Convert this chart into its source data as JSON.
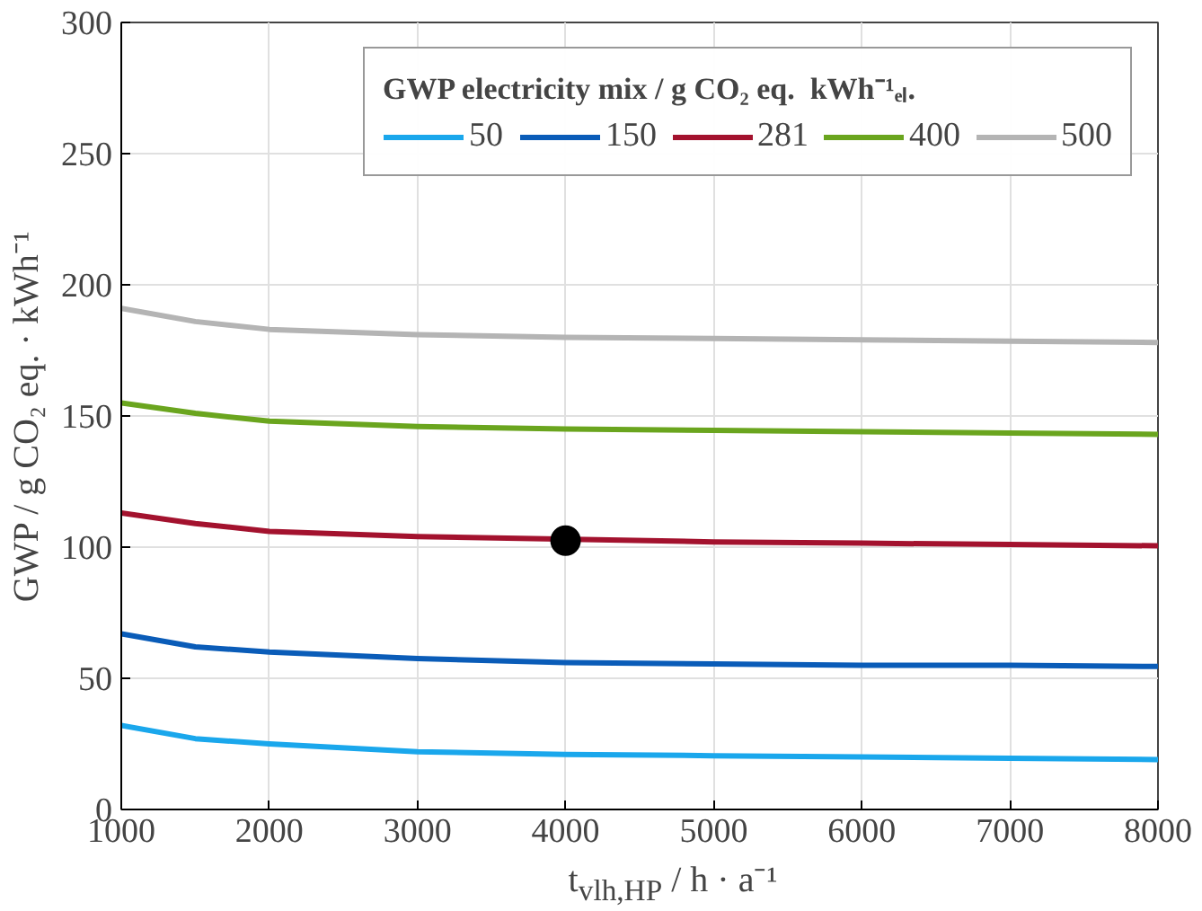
{
  "chart_data": {
    "type": "line",
    "xlabel": "t$_{vlh,HP}$ / h · a⁻¹",
    "ylabel": "GWP / g CO₂ eq. · kWh⁻¹",
    "legend_title": "GWP electricity mix / g CO₂ eq.  kWh⁻¹ₑₗ.",
    "x": [
      1000,
      1500,
      2000,
      3000,
      4000,
      5000,
      6000,
      7000,
      8000
    ],
    "series": [
      {
        "name": "50",
        "color": "#1aa7ec",
        "values": [
          32,
          27,
          25,
          22,
          21,
          20.5,
          20,
          19.5,
          19
        ]
      },
      {
        "name": "150",
        "color": "#0a5cb8",
        "values": [
          67,
          62,
          60,
          57.5,
          56,
          55.5,
          55,
          55,
          54.5
        ]
      },
      {
        "name": "281",
        "color": "#a3122e",
        "x": [
          1000,
          1500,
          2000,
          3000,
          5000,
          6000,
          7000,
          8000
        ],
        "values": [
          113,
          109,
          106,
          104,
          102,
          101.5,
          101,
          100.5
        ]
      },
      {
        "name": "400",
        "color": "#6aa51e",
        "values": [
          155,
          151,
          148,
          146,
          145,
          144.5,
          144,
          143.5,
          143
        ]
      },
      {
        "name": "500",
        "color": "#b4b4b4",
        "values": [
          191,
          186,
          183,
          181,
          180,
          179.5,
          179,
          178.5,
          178
        ]
      },
      {
        "type": "scatter",
        "color": "#000000",
        "x": [
          4000
        ],
        "values": [
          102.5
        ],
        "marker": "circle"
      }
    ],
    "xlim": [
      1000,
      8000
    ],
    "xticks": [
      1000,
      2000,
      3000,
      4000,
      5000,
      6000,
      7000,
      8000
    ],
    "ylim": [
      0,
      300
    ],
    "yticks": [
      0,
      50,
      100,
      150,
      200,
      250,
      300
    ],
    "grid": true,
    "legend": "top right",
    "marker": "none",
    "line_style": "solid"
  }
}
